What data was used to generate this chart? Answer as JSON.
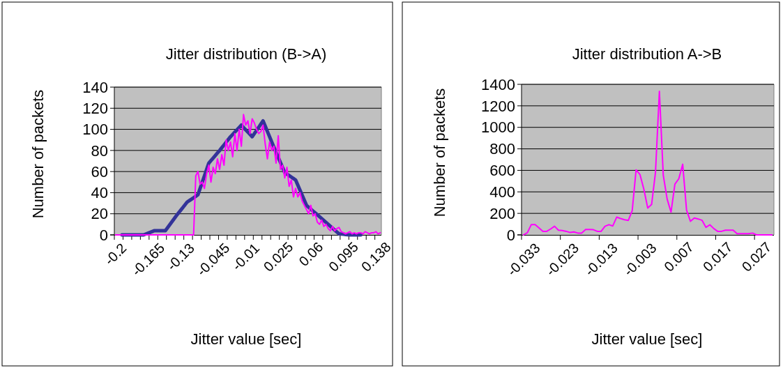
{
  "chart_data": [
    {
      "type": "line",
      "title": "Jitter distribution (B->A)",
      "xlabel": "Jitter value [sec]",
      "ylabel": "Number of packets",
      "grid": "y",
      "ylim": [
        0,
        140
      ],
      "yticks": [
        0,
        20,
        40,
        60,
        80,
        100,
        120,
        140
      ],
      "categories": [
        "-0.2",
        null,
        null,
        null,
        null,
        null,
        null,
        null,
        null,
        null,
        null,
        null,
        null,
        null,
        null,
        "-0.165",
        null,
        null,
        null,
        null,
        null,
        null,
        null,
        null,
        null,
        null,
        null,
        null,
        null,
        null,
        "-0.13",
        null,
        null,
        null,
        null,
        null,
        null,
        null,
        null,
        null,
        null,
        null,
        null,
        null,
        null,
        "-0.045",
        null,
        null,
        null,
        null,
        null,
        null,
        null,
        null,
        null,
        null,
        null,
        null,
        null,
        null,
        "-0.01",
        null,
        null,
        null,
        null,
        null,
        null,
        null,
        null,
        null,
        null,
        null,
        null,
        null,
        null,
        "0.025",
        null,
        null,
        null,
        null,
        null,
        null,
        null,
        null,
        null,
        null,
        null,
        null,
        null,
        null,
        "0.06",
        null,
        null,
        null,
        null,
        null,
        null,
        null,
        null,
        null,
        null,
        null,
        null,
        null,
        null,
        "0.095",
        null,
        null,
        null,
        null,
        null,
        null,
        null,
        null,
        null,
        null,
        null,
        null,
        null,
        null,
        "0.138",
        null,
        null
      ],
      "series": [
        {
          "color": "#ff00ff",
          "values": [
            0,
            0,
            0,
            0,
            0,
            0,
            0,
            0,
            0,
            0,
            0,
            0,
            0,
            0,
            0,
            0,
            0,
            0,
            0,
            0,
            0,
            0,
            0,
            0,
            0,
            0,
            0,
            0,
            0,
            0,
            0,
            0,
            0,
            0,
            0,
            0,
            0,
            56,
            60,
            48,
            50,
            44,
            58,
            66,
            50,
            64,
            58,
            72,
            62,
            76,
            66,
            90,
            80,
            88,
            74,
            96,
            80,
            100,
            84,
            114,
            104,
            108,
            96,
            110,
            106,
            100,
            96,
            98,
            104,
            86,
            72,
            88,
            80,
            84,
            68,
            94,
            62,
            66,
            54,
            64,
            46,
            52,
            36,
            44,
            36,
            40,
            32,
            28,
            24,
            20,
            28,
            18,
            20,
            12,
            10,
            14,
            8,
            10,
            6,
            4,
            8,
            4,
            6,
            7,
            3,
            2,
            1,
            2,
            3,
            1,
            2,
            1,
            2,
            2,
            1,
            3,
            2,
            1,
            2,
            2,
            3,
            1,
            2
          ]
        },
        {
          "color": "#333399",
          "values": [
            null,
            null,
            null,
            0,
            0,
            0,
            0,
            0,
            0,
            0,
            0,
            0,
            0,
            0,
            0.8,
            1.6,
            2.4,
            3.2,
            4,
            4,
            4,
            4,
            4,
            4,
            6.8,
            9.6,
            12.4,
            15.2,
            18,
            20.6,
            23.2,
            25.8,
            28.4,
            31,
            32.4,
            33.8,
            35.2,
            36.6,
            38,
            44,
            50,
            56,
            62,
            68,
            70.4,
            72.8,
            75.2,
            77.6,
            80,
            82.6,
            85.2,
            87.8,
            90.4,
            93,
            95.2,
            97.4,
            99.6,
            101.8,
            104,
            101.8,
            99.6,
            97.4,
            95.2,
            93,
            96,
            99,
            102,
            105,
            108,
            103,
            98,
            93,
            88,
            83,
            78.2,
            73.4,
            68.6,
            63.8,
            59,
            57.6,
            56.2,
            54.8,
            53.4,
            52,
            47.2,
            42.4,
            37.6,
            32.8,
            28,
            26.2,
            24.4,
            22.6,
            20.8,
            19,
            17.2,
            15.4,
            13.6,
            11.8,
            10,
            8.2,
            6.4,
            4.6,
            2.8,
            1,
            0.8,
            0.6,
            0.4,
            0.2,
            0,
            0,
            0,
            0,
            0,
            0,
            null,
            null,
            null,
            null,
            null,
            null,
            null,
            null,
            null
          ]
        }
      ]
    },
    {
      "type": "line",
      "title": "Jitter distribution A->B",
      "xlabel": "Jitter value [sec]",
      "ylabel": "Number of packets",
      "grid": "y",
      "ylim": [
        0,
        1400
      ],
      "yticks": [
        0,
        200,
        400,
        600,
        800,
        1000,
        1200,
        1400
      ],
      "categories": [
        "-0.033",
        null,
        null,
        null,
        null,
        null,
        null,
        null,
        null,
        null,
        "-0.023",
        null,
        null,
        null,
        null,
        null,
        null,
        null,
        null,
        null,
        "-0.013",
        null,
        null,
        null,
        null,
        null,
        null,
        null,
        null,
        null,
        "-0.003",
        null,
        null,
        null,
        null,
        null,
        null,
        null,
        null,
        null,
        "0.007",
        null,
        null,
        null,
        null,
        null,
        null,
        null,
        null,
        null,
        "0.017",
        null,
        null,
        null,
        null,
        null,
        null,
        null,
        null,
        null,
        "0.027",
        null,
        null,
        null,
        null
      ],
      "series": [
        {
          "color": "#ff00ff",
          "values": [
            0,
            20,
            95,
            95,
            65,
            33,
            33,
            55,
            80,
            44,
            40,
            33,
            22,
            28,
            17,
            17,
            50,
            50,
            48,
            33,
            33,
            80,
            95,
            83,
            165,
            152,
            141,
            135,
            224,
            605,
            562,
            425,
            250,
            283,
            583,
            1335,
            555,
            333,
            211,
            472,
            522,
            657,
            229,
            126,
            157,
            148,
            135,
            70,
            94,
            59,
            33,
            33,
            44,
            44,
            44,
            11,
            11,
            11,
            11,
            17,
            0,
            0,
            0,
            0,
            0
          ]
        }
      ]
    }
  ]
}
